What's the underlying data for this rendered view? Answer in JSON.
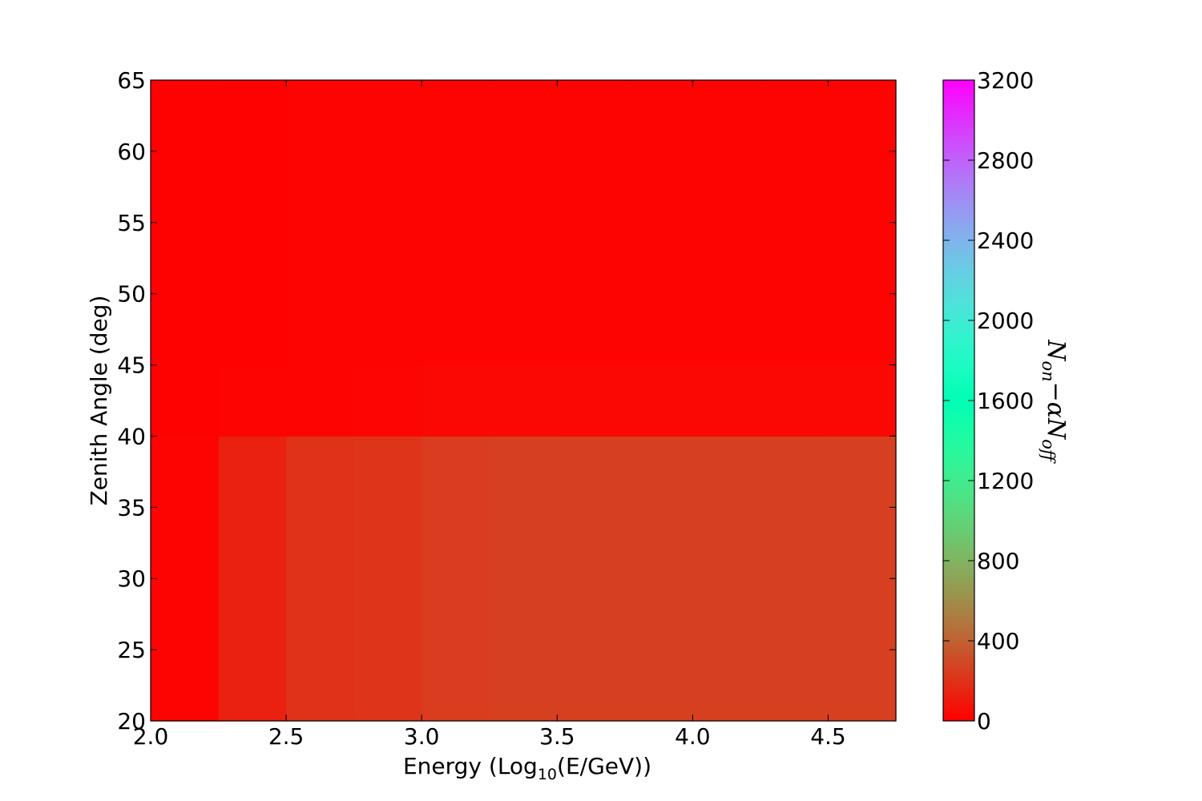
{
  "chart_data": {
    "type": "heatmap",
    "title": "",
    "xlabel": "Energy (Log10(E/GeV))",
    "xlabel_parts": {
      "before": "Energy (Log",
      "sub": "10",
      "after": "(E/GeV))"
    },
    "ylabel": "Zenith Angle (deg)",
    "colorbar_label": "N_on − αN_off",
    "colorbar_label_parts": {
      "n1": "N",
      "s1": "on",
      "mid": "−α",
      "n2": "N",
      "s2": "off"
    },
    "colormap": "rainbow_r",
    "xlim": [
      2.0,
      4.75
    ],
    "ylim": [
      20,
      65
    ],
    "clim": [
      0,
      3200
    ],
    "x_edges": [
      2.0,
      2.25,
      2.5,
      2.75,
      3.0,
      3.25,
      3.5,
      3.75,
      4.0,
      4.25,
      4.5,
      4.75
    ],
    "y_edges": [
      20,
      40,
      45,
      65
    ],
    "values": [
      [
        10,
        130,
        200,
        210,
        240,
        255,
        258,
        258,
        258,
        258,
        255
      ],
      [
        5,
        12,
        15,
        20,
        30,
        32,
        32,
        32,
        32,
        32,
        32
      ],
      [
        5,
        8,
        10,
        12,
        15,
        15,
        15,
        15,
        15,
        15,
        15
      ]
    ],
    "x_ticks": [
      {
        "value": 2.0,
        "label": "2.0"
      },
      {
        "value": 2.5,
        "label": "2.5"
      },
      {
        "value": 3.0,
        "label": "3.0"
      },
      {
        "value": 3.5,
        "label": "3.5"
      },
      {
        "value": 4.0,
        "label": "4.0"
      },
      {
        "value": 4.5,
        "label": "4.5"
      }
    ],
    "y_ticks": [
      {
        "value": 20,
        "label": "20"
      },
      {
        "value": 25,
        "label": "25"
      },
      {
        "value": 30,
        "label": "30"
      },
      {
        "value": 35,
        "label": "35"
      },
      {
        "value": 40,
        "label": "40"
      },
      {
        "value": 45,
        "label": "45"
      },
      {
        "value": 50,
        "label": "50"
      },
      {
        "value": 55,
        "label": "55"
      },
      {
        "value": 60,
        "label": "60"
      },
      {
        "value": 65,
        "label": "65"
      }
    ],
    "colorbar_ticks": [
      {
        "value": 0,
        "label": "0"
      },
      {
        "value": 400,
        "label": "400"
      },
      {
        "value": 800,
        "label": "800"
      },
      {
        "value": 1200,
        "label": "1200"
      },
      {
        "value": 1600,
        "label": "1600"
      },
      {
        "value": 2000,
        "label": "2000"
      },
      {
        "value": 2400,
        "label": "2400"
      },
      {
        "value": 2800,
        "label": "2800"
      },
      {
        "value": 3200,
        "label": "3200"
      }
    ]
  }
}
